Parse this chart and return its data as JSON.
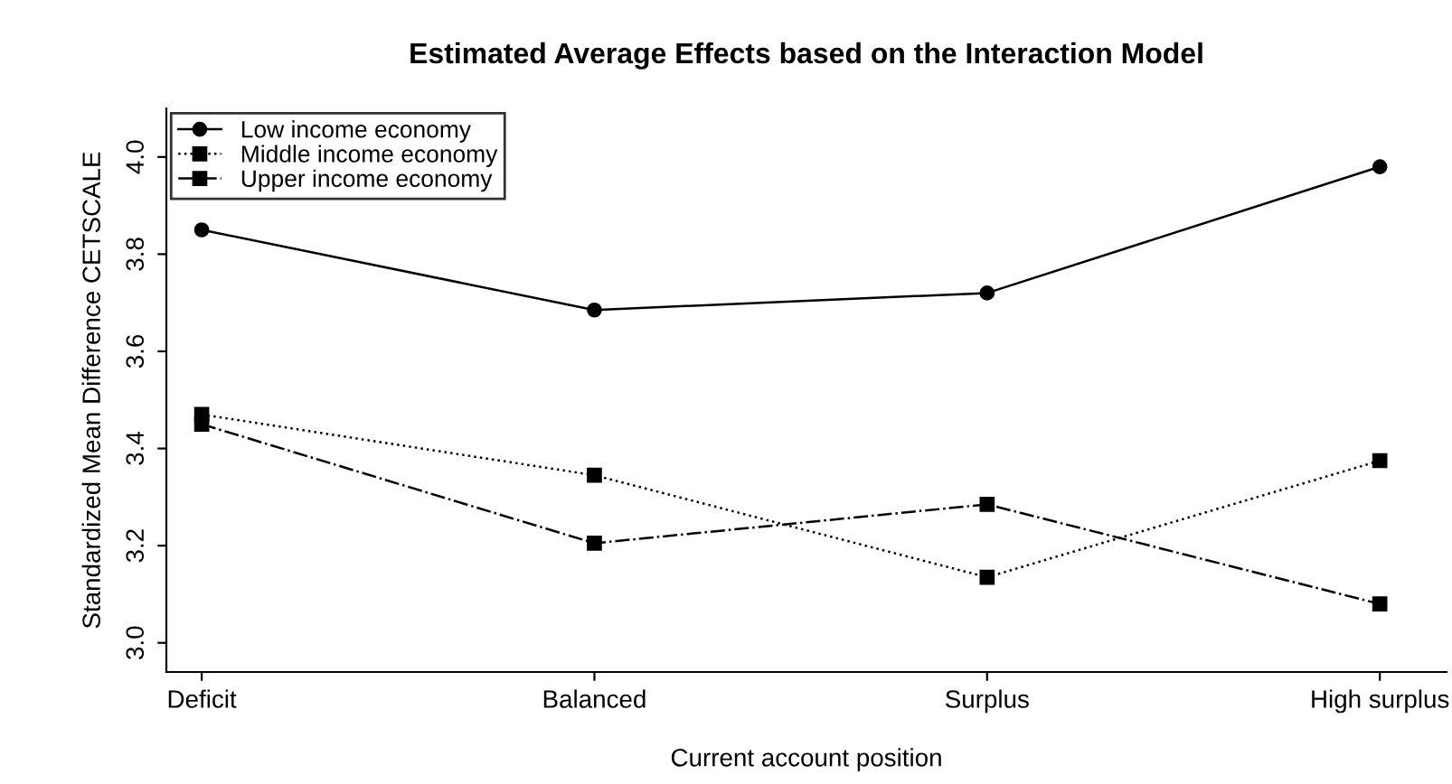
{
  "chart_data": {
    "type": "line",
    "title": "Estimated Average Effects based on the Interaction Model",
    "xlabel": "Current account position",
    "ylabel": "Standardized Mean Difference CETSCALE",
    "categories": [
      "Deficit",
      "Balanced",
      "Surplus",
      "High surplus"
    ],
    "series": [
      {
        "name": "Low income economy",
        "color": "#000000",
        "marker": "circle",
        "line_style": "solid",
        "values": [
          3.85,
          3.685,
          3.72,
          3.98
        ]
      },
      {
        "name": "Middle income economy",
        "color": "#000000",
        "marker": "square",
        "line_style": "dotted",
        "values": [
          3.47,
          3.345,
          3.135,
          3.375
        ]
      },
      {
        "name": "Upper income economy",
        "color": "#000000",
        "marker": "square",
        "line_style": "dashdot",
        "values": [
          3.45,
          3.205,
          3.285,
          3.08
        ]
      }
    ],
    "ylim": [
      2.94,
      4.1
    ],
    "yticks": [
      {
        "value": 3.0,
        "label": "3.0"
      },
      {
        "value": 3.2,
        "label": "3.2"
      },
      {
        "value": 3.4,
        "label": "3.4"
      },
      {
        "value": 3.6,
        "label": "3.6"
      },
      {
        "value": 3.8,
        "label": "3.8"
      },
      {
        "value": 4.0,
        "label": "4.0"
      }
    ],
    "grid": false,
    "legend": "top left"
  }
}
